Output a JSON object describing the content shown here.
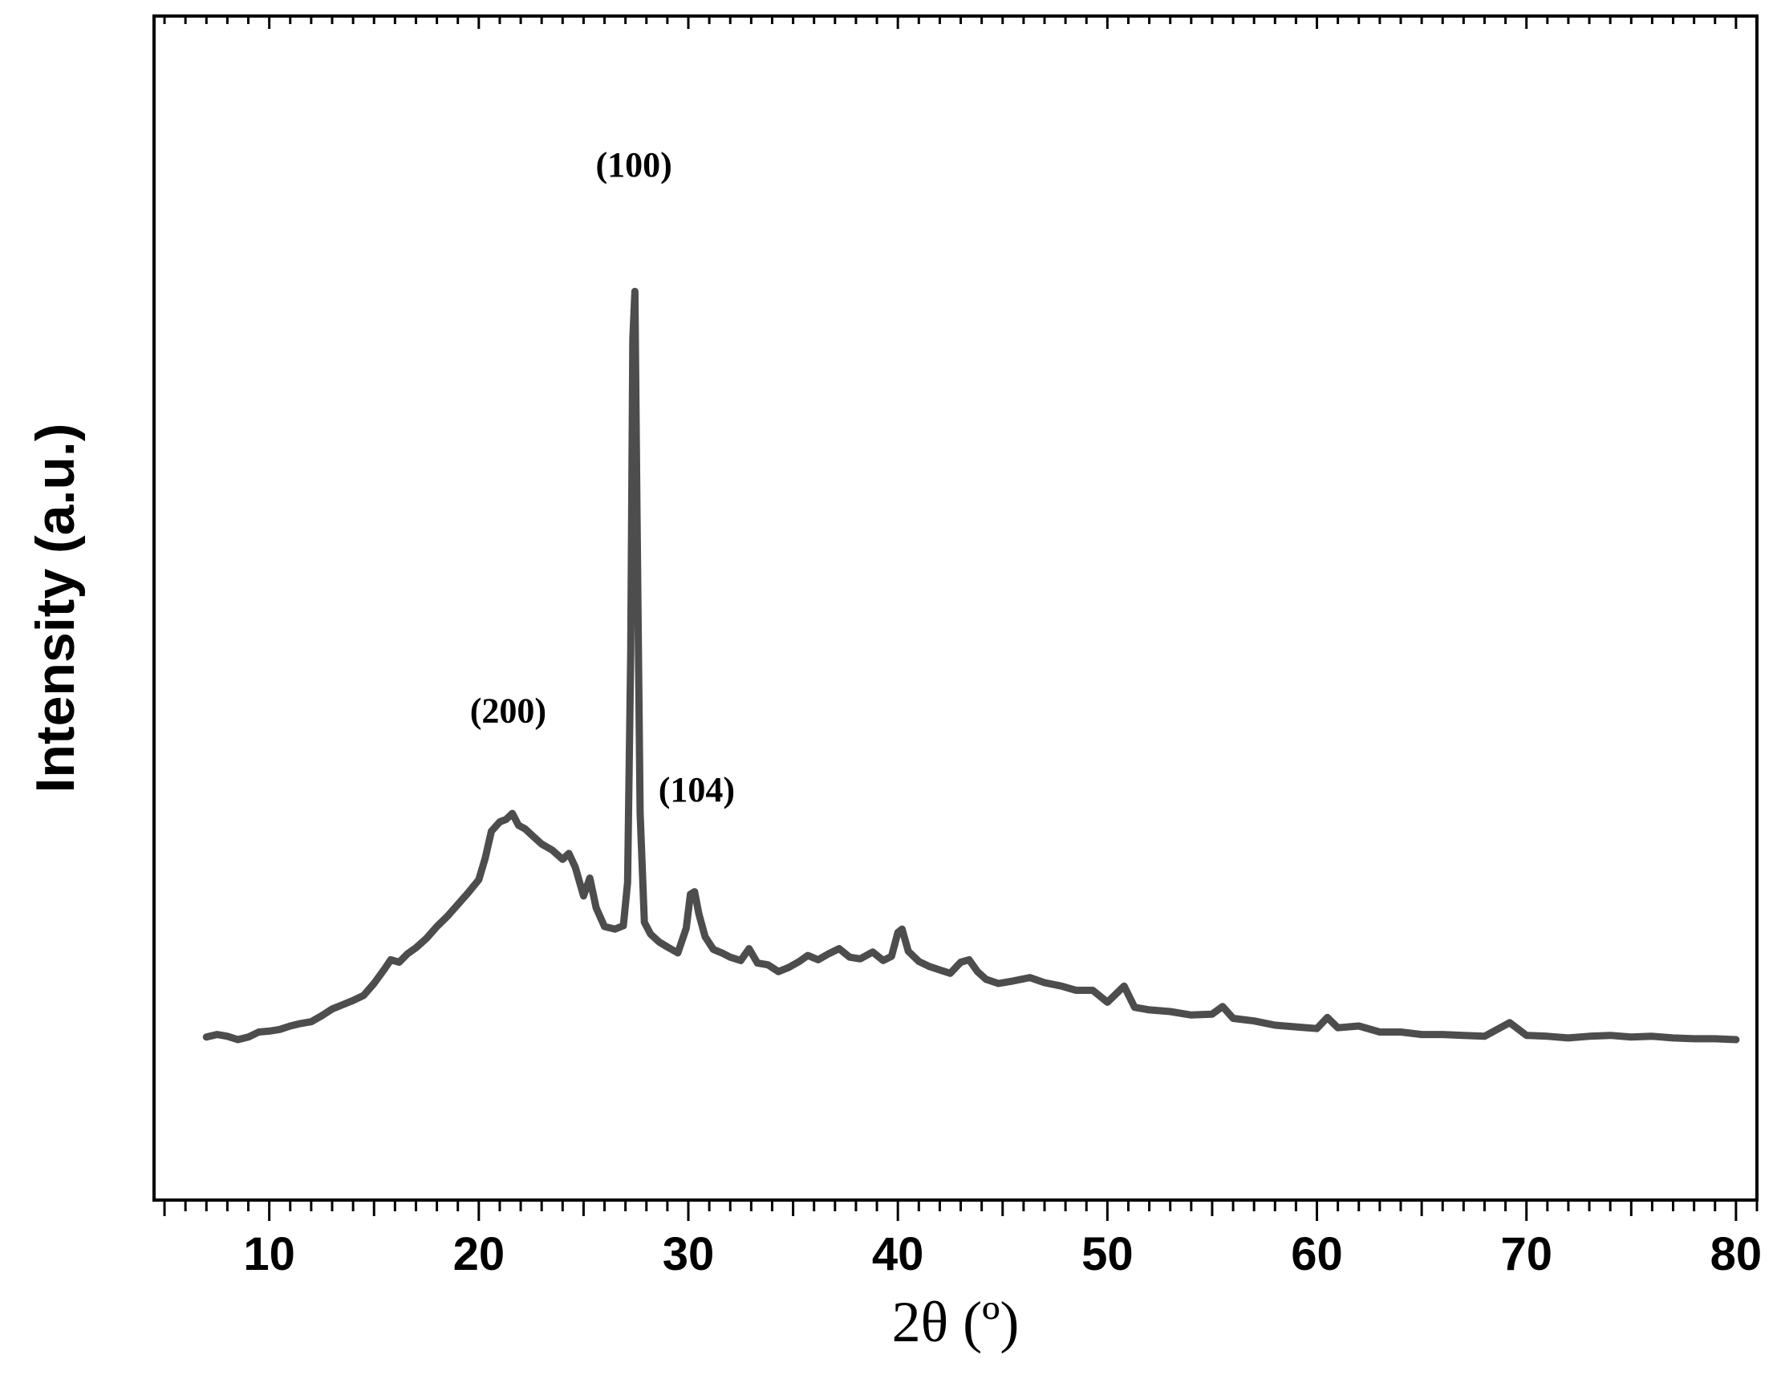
{
  "chart_data": {
    "type": "line",
    "title": "",
    "xlabel": "2θ (º)",
    "ylabel": "Intensity (a.u.)",
    "xlim": [
      4.5,
      81
    ],
    "ylim": [
      0,
      100
    ],
    "x_ticks": [
      "10",
      "20",
      "30",
      "40",
      "50",
      "60",
      "70",
      "80"
    ],
    "x_tick_values": [
      10,
      20,
      30,
      40,
      50,
      60,
      70,
      80
    ],
    "y_tick_labels_shown": false,
    "grid": false,
    "legend": "none",
    "line_color": "#4d4d4d",
    "annotations": [
      {
        "text": "(100)",
        "x": 27.4,
        "y": 101.5
      },
      {
        "text": "(200)",
        "x": 21.4,
        "y": 37.3
      },
      {
        "text": "(104)",
        "x": 30.4,
        "y": 28.0
      }
    ],
    "series": [
      {
        "x": [
          7.0,
          7.5,
          8.0,
          8.5,
          9.0,
          9.5,
          10.0,
          10.5,
          11.0,
          11.5,
          12.0,
          12.5,
          13.0,
          13.5,
          14.0,
          14.5,
          15.0,
          15.5,
          15.8,
          16.2,
          16.6,
          17.0,
          17.5,
          18.0,
          18.5,
          19.0,
          19.5,
          20.0,
          20.3,
          20.6,
          21.0,
          21.3,
          21.6,
          21.9,
          22.2,
          22.6,
          23.0,
          23.5,
          24.0,
          24.3,
          24.6,
          25.0,
          25.3,
          25.6,
          26.0,
          26.5,
          26.9,
          27.1,
          27.25,
          27.35,
          27.45,
          27.55,
          27.7,
          27.9,
          28.2,
          28.6,
          29.0,
          29.5,
          29.9,
          30.1,
          30.3,
          30.5,
          30.8,
          31.2,
          31.6,
          32.0,
          32.5,
          32.9,
          33.3,
          33.8,
          34.3,
          34.8,
          35.3,
          35.7,
          36.2,
          36.7,
          37.2,
          37.7,
          38.2,
          38.8,
          39.3,
          39.7,
          40.0,
          40.2,
          40.5,
          41.0,
          41.5,
          42.0,
          42.5,
          43.0,
          43.4,
          43.8,
          44.2,
          44.8,
          45.5,
          46.3,
          47.0,
          47.8,
          48.5,
          49.3,
          50.0,
          50.8,
          51.3,
          52.0,
          53.0,
          54.0,
          55.0,
          55.5,
          56.0,
          57.0,
          58.0,
          59.0,
          60.0,
          60.5,
          61.0,
          62.0,
          63.0,
          64.0,
          65.0,
          66.0,
          67.0,
          68.0,
          68.6,
          69.2,
          70.0,
          71.0,
          72.0,
          73.0,
          74.0,
          75.0,
          76.0,
          77.0,
          78.0,
          79.0,
          80.0
        ],
        "y": [
          0.3,
          0.6,
          0.4,
          0.0,
          0.3,
          0.9,
          1.0,
          1.2,
          1.6,
          1.9,
          2.1,
          2.8,
          3.6,
          4.1,
          4.6,
          5.2,
          6.6,
          8.3,
          9.4,
          9.1,
          10.1,
          10.8,
          11.9,
          13.3,
          14.5,
          15.9,
          17.3,
          18.8,
          21.3,
          24.5,
          25.6,
          25.9,
          26.6,
          25.2,
          24.8,
          23.9,
          23.0,
          22.3,
          21.2,
          21.9,
          20.3,
          16.9,
          19.0,
          15.5,
          13.3,
          13.0,
          13.4,
          18.5,
          45.6,
          82.4,
          88.0,
          62.2,
          26.7,
          13.8,
          12.4,
          11.5,
          10.9,
          10.2,
          13.1,
          17.1,
          17.4,
          14.8,
          12.1,
          10.6,
          10.2,
          9.7,
          9.3,
          10.7,
          9.0,
          8.8,
          8.0,
          8.5,
          9.2,
          9.9,
          9.4,
          10.1,
          10.7,
          9.7,
          9.5,
          10.3,
          9.3,
          9.8,
          12.6,
          13.0,
          10.4,
          9.2,
          8.6,
          8.2,
          7.8,
          9.1,
          9.4,
          8.0,
          7.1,
          6.6,
          6.9,
          7.3,
          6.7,
          6.3,
          5.8,
          5.8,
          4.4,
          6.3,
          3.8,
          3.5,
          3.3,
          2.9,
          3.0,
          3.9,
          2.5,
          2.2,
          1.7,
          1.5,
          1.3,
          2.6,
          1.4,
          1.6,
          0.9,
          0.9,
          0.6,
          0.6,
          0.5,
          0.4,
          1.2,
          2.0,
          0.5,
          0.4,
          0.2,
          0.4,
          0.5,
          0.3,
          0.4,
          0.2,
          0.1,
          0.1,
          0.0
        ]
      }
    ]
  }
}
